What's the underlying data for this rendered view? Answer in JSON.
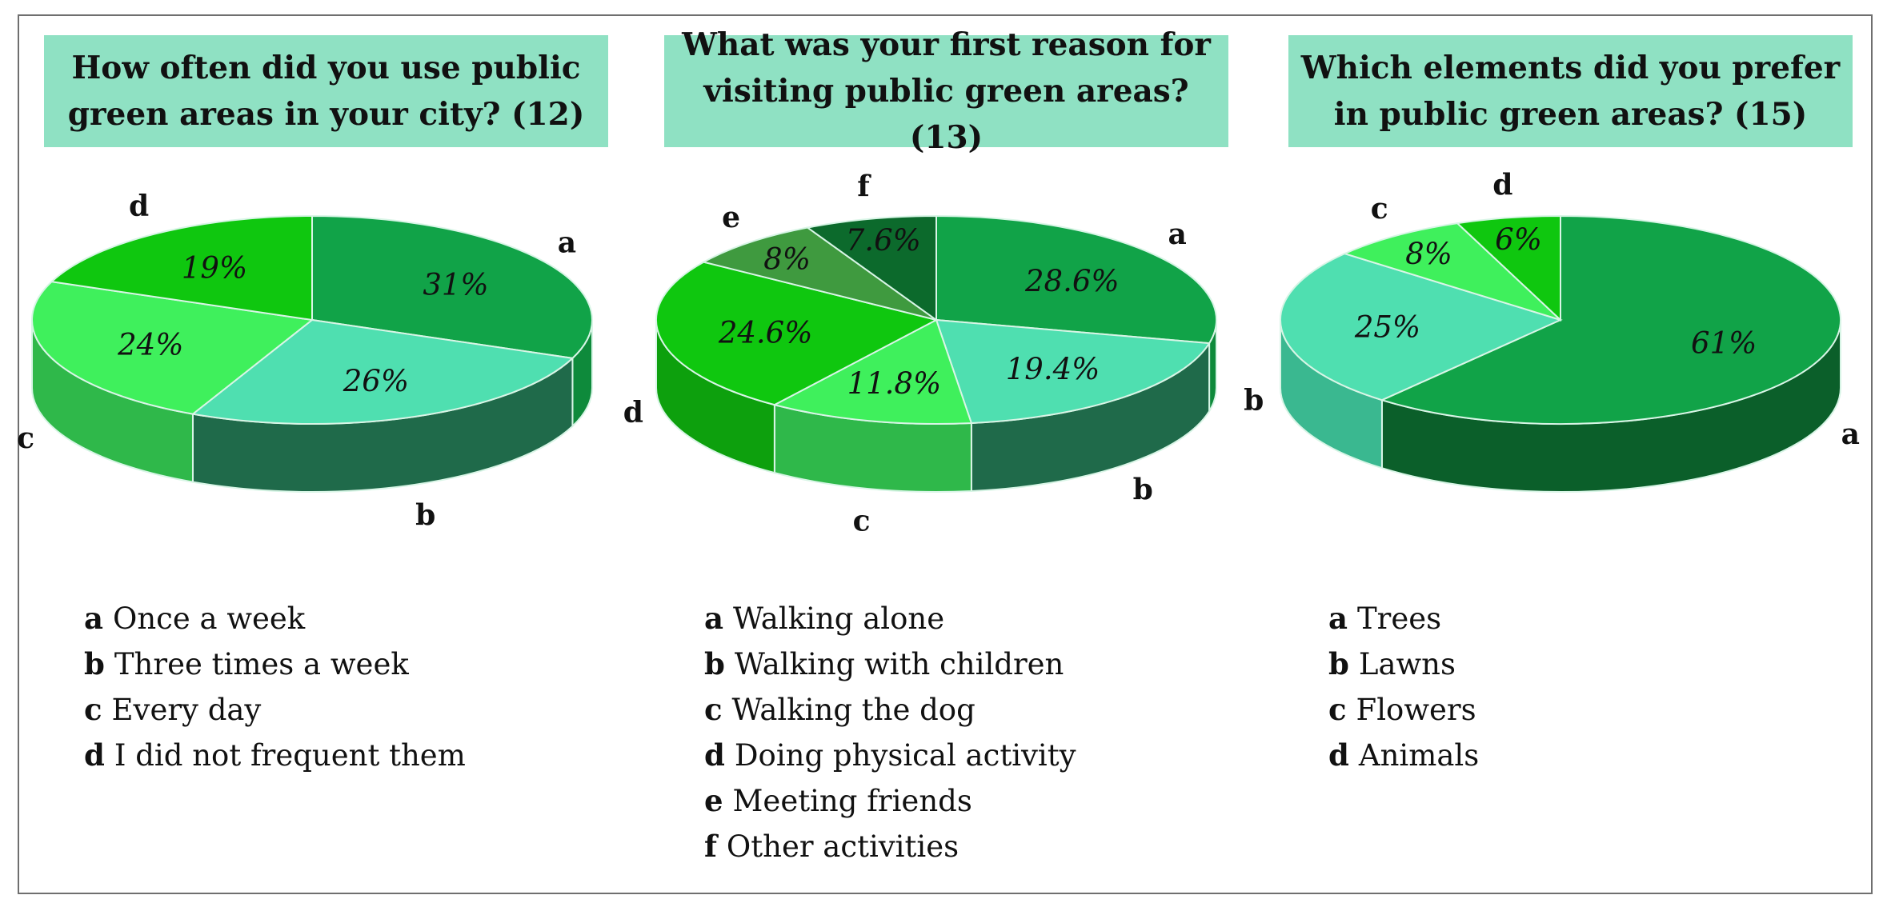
{
  "chart_data": [
    {
      "type": "pie",
      "title": "How often did you use public green areas in your city? (12)",
      "title_lines": [
        "How often did you use public",
        "green areas in your city? (12)"
      ],
      "slices": [
        {
          "key": "a",
          "label": "Once a week",
          "value": 31,
          "value_label": "31%",
          "color": "#11a348",
          "side": "#0e8a3b"
        },
        {
          "key": "b",
          "label": "Three times a week",
          "value": 26,
          "value_label": "26%",
          "color": "#4fdfb0",
          "side": "#1f6a4a"
        },
        {
          "key": "c",
          "label": "Every day",
          "value": 24,
          "value_label": "24%",
          "color": "#3ff05c",
          "side": "#2fb84a"
        },
        {
          "key": "d",
          "label": "I did not frequent them",
          "value": 19,
          "value_label": "19%",
          "color": "#0fc70f",
          "side": "#0da00d"
        }
      ]
    },
    {
      "type": "pie",
      "title": "What was your first reason for visiting public green areas? (13)",
      "title_lines": [
        "What was your first reason for",
        "visiting public green areas? (13)"
      ],
      "slices": [
        {
          "key": "a",
          "label": "Walking alone",
          "value": 28.6,
          "value_label": "28.6%",
          "color": "#11a348",
          "side": "#0e8a3b"
        },
        {
          "key": "b",
          "label": "Walking with children",
          "value": 19.4,
          "value_label": "19.4%",
          "color": "#4fdfb0",
          "side": "#1f6a4a"
        },
        {
          "key": "c",
          "label": "Walking the dog",
          "value": 11.8,
          "value_label": "11.8%",
          "color": "#3ff05c",
          "side": "#2fb84a"
        },
        {
          "key": "d",
          "label": "Doing physical activity",
          "value": 24.6,
          "value_label": "24.6%",
          "color": "#0fc70f",
          "side": "#0da00d"
        },
        {
          "key": "e",
          "label": "Meeting friends",
          "value": 8,
          "value_label": "8%",
          "color": "#3f9a3f",
          "side": "#2f7a2f"
        },
        {
          "key": "f",
          "label": "Other activities",
          "value": 7.6,
          "value_label": "7.6%",
          "color": "#0c6a2c",
          "side": "#0a5a24"
        }
      ]
    },
    {
      "type": "pie",
      "title": "Which elements did you prefer in public green areas? (15)",
      "title_lines": [
        "Which elements did you prefer",
        "in public green areas? (15)"
      ],
      "slices": [
        {
          "key": "a",
          "label": "Trees",
          "value": 61,
          "value_label": "61%",
          "color": "#11a348",
          "side": "#0b5f2a"
        },
        {
          "key": "b",
          "label": "Lawns",
          "value": 25,
          "value_label": "25%",
          "color": "#4fdfb0",
          "side": "#3ab890"
        },
        {
          "key": "c",
          "label": "Flowers",
          "value": 8,
          "value_label": "8%",
          "color": "#3ff05c",
          "side": "#2fb84a"
        },
        {
          "key": "d",
          "label": "Animals",
          "value": 6,
          "value_label": "6%",
          "color": "#0fc70f",
          "side": "#0da00d"
        }
      ]
    }
  ]
}
